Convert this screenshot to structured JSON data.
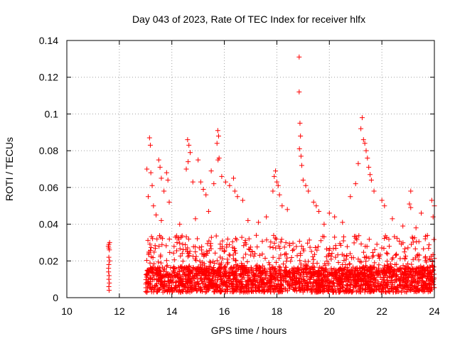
{
  "chart_data": {
    "type": "scatter",
    "title": "Day 043 of 2023, Rate Of TEC Index for receiver hlfx",
    "xlabel": "GPS time / hours",
    "ylabel": "ROTI / TECUs",
    "xlim": [
      10,
      24
    ],
    "ylim": [
      0,
      0.14
    ],
    "x_ticks": [
      "10",
      "12",
      "14",
      "16",
      "18",
      "20",
      "22",
      "24"
    ],
    "y_ticks": [
      "0",
      "0.02",
      "0.04",
      "0.06",
      "0.08",
      "0.1",
      "0.12",
      "0.14"
    ],
    "grid": true,
    "marker": "+",
    "color": "#ff0000",
    "series": [
      {
        "points": [
          [
            11.6,
            0.029
          ],
          [
            11.6,
            0.027
          ],
          [
            11.62,
            0.026
          ],
          [
            11.58,
            0.028
          ],
          [
            11.63,
            0.03
          ],
          [
            11.6,
            0.018
          ],
          [
            11.59,
            0.014
          ],
          [
            11.61,
            0.012
          ],
          [
            11.6,
            0.01
          ],
          [
            11.62,
            0.008
          ],
          [
            11.6,
            0.006
          ],
          [
            11.61,
            0.004
          ],
          [
            11.59,
            0.016
          ],
          [
            11.63,
            0.02
          ],
          [
            11.6,
            0.022
          ],
          [
            13.05,
            0.07
          ],
          [
            13.15,
            0.087
          ],
          [
            13.18,
            0.083
          ],
          [
            13.2,
            0.068
          ],
          [
            13.25,
            0.061
          ],
          [
            13.1,
            0.055
          ],
          [
            13.3,
            0.05
          ],
          [
            13.5,
            0.075
          ],
          [
            13.55,
            0.071
          ],
          [
            13.6,
            0.065
          ],
          [
            13.8,
            0.068
          ],
          [
            13.85,
            0.064
          ],
          [
            13.7,
            0.058
          ],
          [
            13.9,
            0.052
          ],
          [
            14.6,
            0.086
          ],
          [
            14.65,
            0.083
          ],
          [
            14.7,
            0.079
          ],
          [
            14.62,
            0.074
          ],
          [
            14.55,
            0.07
          ],
          [
            14.8,
            0.063
          ],
          [
            15.0,
            0.075
          ],
          [
            15.1,
            0.063
          ],
          [
            15.2,
            0.059
          ],
          [
            15.3,
            0.056
          ],
          [
            15.5,
            0.069
          ],
          [
            15.6,
            0.062
          ],
          [
            15.75,
            0.091
          ],
          [
            15.78,
            0.088
          ],
          [
            15.72,
            0.084
          ],
          [
            15.8,
            0.076
          ],
          [
            15.76,
            0.075
          ],
          [
            15.9,
            0.066
          ],
          [
            16.05,
            0.063
          ],
          [
            16.2,
            0.061
          ],
          [
            16.35,
            0.065
          ],
          [
            16.4,
            0.058
          ],
          [
            16.5,
            0.055
          ],
          [
            16.7,
            0.053
          ],
          [
            17.9,
            0.066
          ],
          [
            17.95,
            0.069
          ],
          [
            18.0,
            0.063
          ],
          [
            18.05,
            0.061
          ],
          [
            17.85,
            0.058
          ],
          [
            18.1,
            0.056
          ],
          [
            18.2,
            0.05
          ],
          [
            18.4,
            0.048
          ],
          [
            18.85,
            0.131
          ],
          [
            18.85,
            0.112
          ],
          [
            18.88,
            0.095
          ],
          [
            18.9,
            0.088
          ],
          [
            18.86,
            0.081
          ],
          [
            18.92,
            0.077
          ],
          [
            18.95,
            0.072
          ],
          [
            19.0,
            0.064
          ],
          [
            19.1,
            0.061
          ],
          [
            19.2,
            0.058
          ],
          [
            19.4,
            0.052
          ],
          [
            19.5,
            0.05
          ],
          [
            19.6,
            0.047
          ],
          [
            20.0,
            0.046
          ],
          [
            20.2,
            0.044
          ],
          [
            20.8,
            0.055
          ],
          [
            21.0,
            0.062
          ],
          [
            21.1,
            0.073
          ],
          [
            21.2,
            0.092
          ],
          [
            21.25,
            0.098
          ],
          [
            21.3,
            0.086
          ],
          [
            21.35,
            0.084
          ],
          [
            21.4,
            0.08
          ],
          [
            21.45,
            0.076
          ],
          [
            21.5,
            0.071
          ],
          [
            21.55,
            0.067
          ],
          [
            21.6,
            0.064
          ],
          [
            21.7,
            0.058
          ],
          [
            22.0,
            0.053
          ],
          [
            22.1,
            0.05
          ],
          [
            23.1,
            0.058
          ],
          [
            23.05,
            0.051
          ],
          [
            23.1,
            0.049
          ],
          [
            23.5,
            0.046
          ],
          [
            23.9,
            0.053
          ],
          [
            24.0,
            0.05
          ],
          [
            23.95,
            0.044
          ],
          [
            13.4,
            0.045
          ],
          [
            13.6,
            0.042
          ],
          [
            14.3,
            0.04
          ],
          [
            14.9,
            0.043
          ],
          [
            15.4,
            0.047
          ],
          [
            16.9,
            0.042
          ],
          [
            17.3,
            0.041
          ],
          [
            17.6,
            0.044
          ],
          [
            19.8,
            0.04
          ],
          [
            20.5,
            0.041
          ],
          [
            22.4,
            0.043
          ],
          [
            22.8,
            0.039
          ],
          [
            23.3,
            0.038
          ]
        ]
      }
    ],
    "dense_bands": [
      {
        "x": [
          13.0,
          24.0
        ],
        "y_floor": 0.003,
        "y_median": 0.012,
        "y_ceiling": 0.034
      }
    ]
  }
}
